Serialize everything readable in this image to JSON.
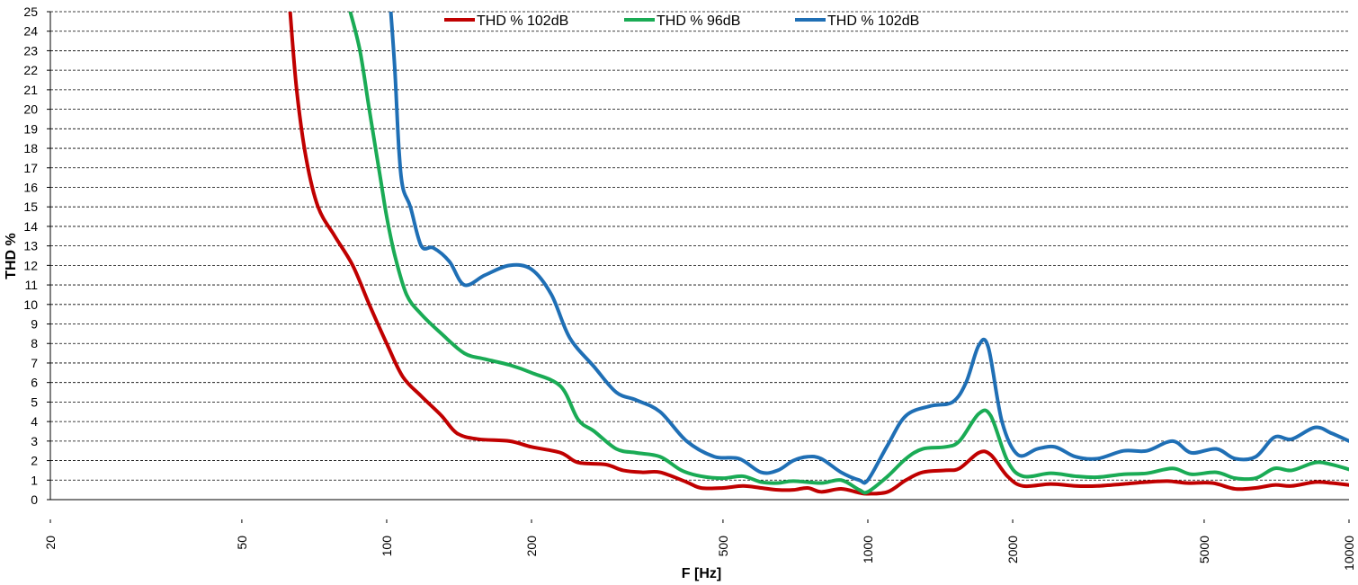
{
  "chart_data": {
    "type": "line",
    "title": "",
    "xlabel": "F [Hz]",
    "ylabel": "THD %",
    "x_scale": "log",
    "xlim": [
      20,
      10000
    ],
    "ylim": [
      0,
      25
    ],
    "y_ticks": [
      0,
      1,
      2,
      3,
      4,
      5,
      6,
      7,
      8,
      9,
      10,
      11,
      12,
      13,
      14,
      15,
      16,
      17,
      18,
      19,
      20,
      21,
      22,
      23,
      24,
      25
    ],
    "x_ticks": [
      20,
      50,
      100,
      200,
      500,
      1000,
      2000,
      5000,
      10000
    ],
    "grid": "horizontal dashed",
    "legend_position": "top-center",
    "series": [
      {
        "name": "THD % 102dB",
        "color": "#c00000",
        "points": [
          [
            63,
            25
          ],
          [
            65,
            21
          ],
          [
            68,
            17.5
          ],
          [
            72,
            15
          ],
          [
            78,
            13.5
          ],
          [
            85,
            12
          ],
          [
            92,
            10
          ],
          [
            100,
            8
          ],
          [
            108,
            6.3
          ],
          [
            118,
            5.3
          ],
          [
            130,
            4.3
          ],
          [
            140,
            3.4
          ],
          [
            155,
            3.1
          ],
          [
            180,
            3.0
          ],
          [
            200,
            2.7
          ],
          [
            230,
            2.4
          ],
          [
            250,
            1.9
          ],
          [
            285,
            1.8
          ],
          [
            310,
            1.5
          ],
          [
            340,
            1.4
          ],
          [
            370,
            1.4
          ],
          [
            420,
            0.9
          ],
          [
            450,
            0.6
          ],
          [
            500,
            0.6
          ],
          [
            550,
            0.7
          ],
          [
            600,
            0.6
          ],
          [
            650,
            0.5
          ],
          [
            700,
            0.5
          ],
          [
            750,
            0.6
          ],
          [
            800,
            0.4
          ],
          [
            880,
            0.55
          ],
          [
            960,
            0.35
          ],
          [
            1000,
            0.3
          ],
          [
            1100,
            0.4
          ],
          [
            1200,
            1.0
          ],
          [
            1300,
            1.4
          ],
          [
            1450,
            1.5
          ],
          [
            1550,
            1.6
          ],
          [
            1700,
            2.4
          ],
          [
            1800,
            2.3
          ],
          [
            1950,
            1.2
          ],
          [
            2100,
            0.7
          ],
          [
            2400,
            0.8
          ],
          [
            2700,
            0.7
          ],
          [
            3000,
            0.7
          ],
          [
            3400,
            0.8
          ],
          [
            3800,
            0.9
          ],
          [
            4200,
            0.95
          ],
          [
            4600,
            0.85
          ],
          [
            5200,
            0.85
          ],
          [
            5800,
            0.55
          ],
          [
            6400,
            0.6
          ],
          [
            7000,
            0.75
          ],
          [
            7600,
            0.7
          ],
          [
            8500,
            0.9
          ],
          [
            9200,
            0.85
          ],
          [
            10000,
            0.75
          ]
        ]
      },
      {
        "name": "THD % 96dB",
        "color": "#1aab55",
        "points": [
          [
            84,
            25
          ],
          [
            88,
            23
          ],
          [
            92,
            20
          ],
          [
            97,
            16.5
          ],
          [
            100,
            14.5
          ],
          [
            104,
            12.5
          ],
          [
            110,
            10.5
          ],
          [
            118,
            9.5
          ],
          [
            130,
            8.5
          ],
          [
            145,
            7.5
          ],
          [
            160,
            7.2
          ],
          [
            180,
            6.9
          ],
          [
            200,
            6.5
          ],
          [
            230,
            5.8
          ],
          [
            250,
            4.1
          ],
          [
            270,
            3.5
          ],
          [
            300,
            2.6
          ],
          [
            330,
            2.4
          ],
          [
            370,
            2.2
          ],
          [
            410,
            1.5
          ],
          [
            450,
            1.2
          ],
          [
            500,
            1.1
          ],
          [
            550,
            1.2
          ],
          [
            600,
            0.9
          ],
          [
            650,
            0.85
          ],
          [
            700,
            0.95
          ],
          [
            800,
            0.85
          ],
          [
            880,
            1.0
          ],
          [
            960,
            0.5
          ],
          [
            1000,
            0.4
          ],
          [
            1100,
            1.2
          ],
          [
            1200,
            2.1
          ],
          [
            1300,
            2.6
          ],
          [
            1450,
            2.7
          ],
          [
            1550,
            3.0
          ],
          [
            1700,
            4.4
          ],
          [
            1800,
            4.3
          ],
          [
            1950,
            2.0
          ],
          [
            2100,
            1.2
          ],
          [
            2400,
            1.35
          ],
          [
            2700,
            1.2
          ],
          [
            3000,
            1.15
          ],
          [
            3400,
            1.3
          ],
          [
            3800,
            1.35
          ],
          [
            4300,
            1.6
          ],
          [
            4700,
            1.3
          ],
          [
            5300,
            1.4
          ],
          [
            5800,
            1.1
          ],
          [
            6400,
            1.1
          ],
          [
            7000,
            1.6
          ],
          [
            7600,
            1.5
          ],
          [
            8500,
            1.9
          ],
          [
            9200,
            1.8
          ],
          [
            10000,
            1.55
          ]
        ]
      },
      {
        "name": "THD % 102dB",
        "color": "#1f6fb5",
        "points": [
          [
            102,
            25
          ],
          [
            104,
            22
          ],
          [
            106,
            18
          ],
          [
            108,
            16
          ],
          [
            112,
            15
          ],
          [
            118,
            13
          ],
          [
            125,
            12.9
          ],
          [
            135,
            12.2
          ],
          [
            145,
            11
          ],
          [
            160,
            11.5
          ],
          [
            180,
            12
          ],
          [
            200,
            11.8
          ],
          [
            220,
            10.5
          ],
          [
            240,
            8.3
          ],
          [
            270,
            6.8
          ],
          [
            300,
            5.5
          ],
          [
            330,
            5.1
          ],
          [
            370,
            4.5
          ],
          [
            420,
            3.0
          ],
          [
            480,
            2.2
          ],
          [
            540,
            2.1
          ],
          [
            600,
            1.4
          ],
          [
            650,
            1.5
          ],
          [
            700,
            2.0
          ],
          [
            750,
            2.2
          ],
          [
            800,
            2.1
          ],
          [
            880,
            1.4
          ],
          [
            960,
            1.0
          ],
          [
            1000,
            1.0
          ],
          [
            1100,
            2.8
          ],
          [
            1200,
            4.3
          ],
          [
            1350,
            4.8
          ],
          [
            1500,
            5.0
          ],
          [
            1600,
            6.0
          ],
          [
            1700,
            7.9
          ],
          [
            1780,
            7.8
          ],
          [
            1900,
            4.0
          ],
          [
            2050,
            2.3
          ],
          [
            2250,
            2.6
          ],
          [
            2450,
            2.7
          ],
          [
            2700,
            2.2
          ],
          [
            3000,
            2.1
          ],
          [
            3400,
            2.5
          ],
          [
            3800,
            2.5
          ],
          [
            4300,
            3.0
          ],
          [
            4700,
            2.4
          ],
          [
            5300,
            2.6
          ],
          [
            5800,
            2.1
          ],
          [
            6400,
            2.2
          ],
          [
            7000,
            3.2
          ],
          [
            7600,
            3.1
          ],
          [
            8500,
            3.7
          ],
          [
            9200,
            3.4
          ],
          [
            10000,
            3.0
          ]
        ]
      }
    ]
  }
}
